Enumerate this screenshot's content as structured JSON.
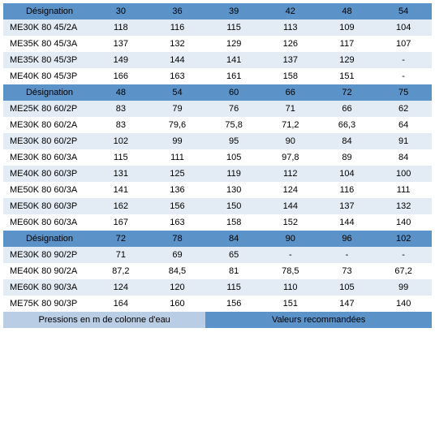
{
  "footer": {
    "left": "Pressions en m de colonne d'eau",
    "right": "Valeurs recommandées"
  },
  "sections": [
    {
      "header": [
        "Désignation",
        "30",
        "36",
        "39",
        "42",
        "48",
        "54"
      ],
      "rows": [
        [
          "ME30K 80 45/2A",
          "118",
          "116",
          "115",
          "113",
          "109",
          "104"
        ],
        [
          "ME35K 80 45/3A",
          "137",
          "132",
          "129",
          "126",
          "117",
          "107"
        ],
        [
          "ME35K 80 45/3P",
          "149",
          "144",
          "141",
          "137",
          "129",
          "-"
        ],
        [
          "ME40K 80 45/3P",
          "166",
          "163",
          "161",
          "158",
          "151",
          "-"
        ]
      ]
    },
    {
      "header": [
        "Désignation",
        "48",
        "54",
        "60",
        "66",
        "72",
        "75"
      ],
      "rows": [
        [
          "ME25K 80 60/2P",
          "83",
          "79",
          "76",
          "71",
          "66",
          "62"
        ],
        [
          "ME30K 80 60/2A",
          "83",
          "79,6",
          "75,8",
          "71,2",
          "66,3",
          "64"
        ],
        [
          "ME30K 80 60/2P",
          "102",
          "99",
          "95",
          "90",
          "84",
          "91"
        ],
        [
          "ME30K 80 60/3A",
          "115",
          "111",
          "105",
          "97,8",
          "89",
          "84"
        ],
        [
          "ME40K 80 60/3P",
          "131",
          "125",
          "119",
          "112",
          "104",
          "100"
        ],
        [
          "ME50K 80 60/3A",
          "141",
          "136",
          "130",
          "124",
          "116",
          "111"
        ],
        [
          "ME50K 80 60/3P",
          "162",
          "156",
          "150",
          "144",
          "137",
          "132"
        ],
        [
          "ME60K 80 60/3A",
          "167",
          "163",
          "158",
          "152",
          "144",
          "140"
        ]
      ]
    },
    {
      "header": [
        "Désignation",
        "72",
        "78",
        "84",
        "90",
        "96",
        "102"
      ],
      "rows": [
        [
          "ME30K 80 90/2P",
          "71",
          "69",
          "65",
          "-",
          "-",
          "-"
        ],
        [
          "ME40K 80 90/2A",
          "87,2",
          "84,5",
          "81",
          "78,5",
          "73",
          "67,2"
        ],
        [
          "ME60K 80 90/3A",
          "124",
          "120",
          "115",
          "110",
          "105",
          "99"
        ],
        [
          "ME75K 80 90/3P",
          "164",
          "160",
          "156",
          "151",
          "147",
          "140"
        ]
      ]
    }
  ]
}
